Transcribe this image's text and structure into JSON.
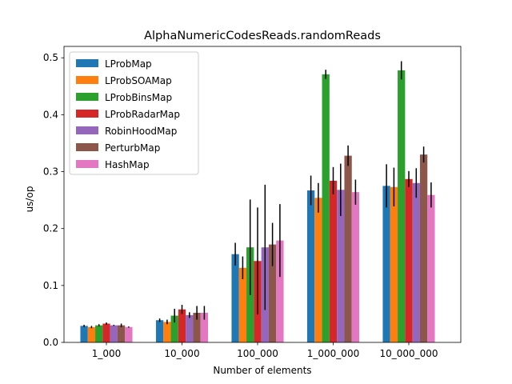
{
  "chart_data": {
    "type": "bar",
    "title": "AlphaNumericCodesReads.randomReads",
    "xlabel": "Number of elements",
    "ylabel": "us/op",
    "ylim": [
      0,
      0.52
    ],
    "yticks": [
      0.0,
      0.1,
      0.2,
      0.3,
      0.4,
      0.5
    ],
    "ytick_labels": [
      "0.0",
      "0.1",
      "0.2",
      "0.3",
      "0.4",
      "0.5"
    ],
    "categories": [
      "1_000",
      "10_000",
      "100_000",
      "1_000_000",
      "10_000_000"
    ],
    "grid": false,
    "legend_position": "top-left",
    "series": [
      {
        "name": "LProbMap",
        "color": "#1f77b4",
        "values": [
          0.029,
          0.039,
          0.155,
          0.267,
          0.275
        ],
        "errors": [
          0.002,
          0.003,
          0.02,
          0.026,
          0.038
        ]
      },
      {
        "name": "LProbSOAMap",
        "color": "#ff7f0e",
        "values": [
          0.027,
          0.036,
          0.131,
          0.254,
          0.273
        ],
        "errors": [
          0.002,
          0.004,
          0.02,
          0.026,
          0.034
        ]
      },
      {
        "name": "LProbBinsMap",
        "color": "#2ca02c",
        "values": [
          0.03,
          0.047,
          0.167,
          0.471,
          0.478
        ],
        "errors": [
          0.002,
          0.012,
          0.084,
          0.008,
          0.016
        ]
      },
      {
        "name": "LProbRadarMap",
        "color": "#d62728",
        "values": [
          0.033,
          0.058,
          0.143,
          0.284,
          0.287
        ],
        "errors": [
          0.002,
          0.008,
          0.094,
          0.024,
          0.014
        ]
      },
      {
        "name": "RobinHoodMap",
        "color": "#9467bd",
        "values": [
          0.03,
          0.048,
          0.167,
          0.268,
          0.28
        ],
        "errors": [
          0.001,
          0.005,
          0.11,
          0.046,
          0.026
        ]
      },
      {
        "name": "PerturbMap",
        "color": "#8c564b",
        "values": [
          0.03,
          0.052,
          0.172,
          0.328,
          0.33
        ],
        "errors": [
          0.003,
          0.012,
          0.038,
          0.018,
          0.014
        ]
      },
      {
        "name": "HashMap",
        "color": "#e377c2",
        "values": [
          0.027,
          0.052,
          0.179,
          0.264,
          0.259
        ],
        "errors": [
          0.001,
          0.012,
          0.064,
          0.022,
          0.022
        ]
      }
    ]
  }
}
